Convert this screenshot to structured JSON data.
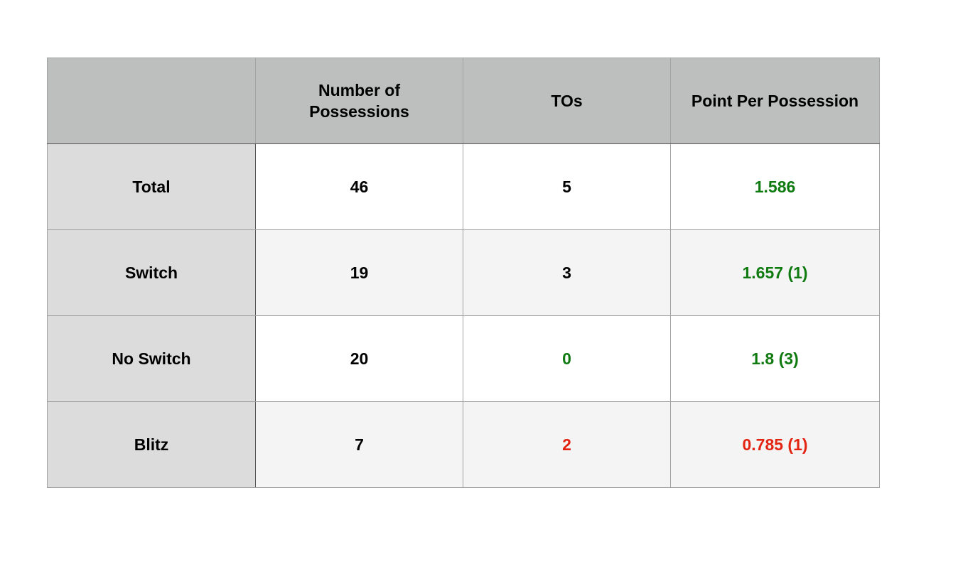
{
  "colors": {
    "header_bg": "#bdbfbe",
    "row_header_bg": "#dcdcdc",
    "row_even_bg": "#f4f4f4",
    "positive": "#0f7a0f",
    "negative": "#e32412",
    "neutral": "#000000"
  },
  "table": {
    "headers": [
      "",
      "Number of Possessions",
      "TOs",
      "Point Per Possession"
    ],
    "rows": [
      {
        "label": "Total",
        "possessions": {
          "text": "46",
          "tone": "neutral"
        },
        "tos": {
          "text": "5",
          "tone": "neutral"
        },
        "ppp": {
          "text": "1.586",
          "tone": "positive"
        }
      },
      {
        "label": "Switch",
        "possessions": {
          "text": "19",
          "tone": "neutral"
        },
        "tos": {
          "text": "3",
          "tone": "neutral"
        },
        "ppp": {
          "text": "1.657 (1)",
          "tone": "positive"
        }
      },
      {
        "label": "No Switch",
        "possessions": {
          "text": "20",
          "tone": "neutral"
        },
        "tos": {
          "text": "0",
          "tone": "positive"
        },
        "ppp": {
          "text": "1.8 (3)",
          "tone": "positive"
        }
      },
      {
        "label": "Blitz",
        "possessions": {
          "text": "7",
          "tone": "neutral"
        },
        "tos": {
          "text": "2",
          "tone": "negative"
        },
        "ppp": {
          "text": "0.785 (1)",
          "tone": "negative"
        }
      }
    ]
  }
}
